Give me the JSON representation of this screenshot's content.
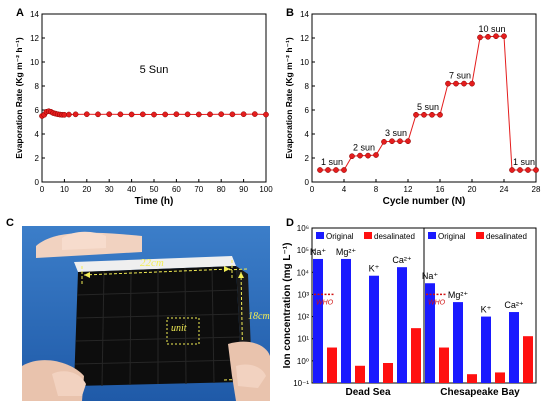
{
  "panels": {
    "a": {
      "letter": "A",
      "annotation": "5 Sun",
      "x_title": "Time (h)",
      "y_title": "Evaporation Rate (Kg m⁻² h⁻¹)"
    },
    "b": {
      "letter": "B",
      "x_title": "Cycle number (N)",
      "y_title": "Evaporation Rate (Kg m⁻² h⁻¹)"
    },
    "c": {
      "letter": "C",
      "width_label": "22cm",
      "height_label": "18cm",
      "unit_label": "unit"
    },
    "d": {
      "letter": "D",
      "y_title": "Ion concentration (mg L⁻¹)",
      "who_label": "WHO"
    }
  },
  "colors": {
    "marker": "#e41d1d",
    "original": "#1a1aff",
    "desalinated": "#ff1010",
    "who": "#d01010",
    "photo_label": "#f3ee55",
    "axis": "#000000"
  },
  "chart_data": [
    {
      "panel": "A",
      "type": "line",
      "marker": "circle",
      "xlim": [
        0,
        100
      ],
      "ylim": [
        0,
        14
      ],
      "xticks": [
        0,
        10,
        20,
        30,
        40,
        50,
        60,
        70,
        80,
        90,
        100
      ],
      "yticks": [
        0,
        2,
        4,
        6,
        8,
        10,
        12,
        14
      ],
      "xlabel": "Time (h)",
      "ylabel": "Evaporation Rate (Kg m⁻² h⁻¹)",
      "annotations": [
        "5 Sun"
      ],
      "series": [
        {
          "x": [
            0,
            1,
            2,
            3,
            4,
            5,
            6,
            7,
            8,
            9,
            10,
            12,
            15,
            20,
            25,
            30,
            35,
            40,
            45,
            50,
            55,
            60,
            65,
            70,
            75,
            80,
            85,
            90,
            95,
            100
          ],
          "y": [
            5.5,
            5.6,
            5.85,
            5.9,
            5.85,
            5.75,
            5.7,
            5.65,
            5.62,
            5.6,
            5.6,
            5.62,
            5.64,
            5.65,
            5.64,
            5.65,
            5.64,
            5.63,
            5.64,
            5.62,
            5.63,
            5.65,
            5.64,
            5.63,
            5.64,
            5.65,
            5.64,
            5.65,
            5.66,
            5.62
          ]
        }
      ]
    },
    {
      "panel": "B",
      "type": "line",
      "marker": "circle",
      "xlim": [
        0,
        28
      ],
      "ylim": [
        0,
        14
      ],
      "xticks": [
        0,
        4,
        8,
        12,
        16,
        20,
        24,
        28
      ],
      "yticks": [
        0,
        2,
        4,
        6,
        8,
        10,
        12,
        14
      ],
      "xlabel": "Cycle number (N)",
      "ylabel": "Evaporation Rate (Kg m⁻² h⁻¹)",
      "series": [
        {
          "x": [
            1,
            2,
            3,
            4,
            5,
            6,
            7,
            8,
            9,
            10,
            11,
            12,
            13,
            14,
            15,
            16,
            17,
            18,
            19,
            20,
            21,
            22,
            23,
            24,
            25,
            26,
            27,
            28
          ],
          "y": [
            1.0,
            1.0,
            1.0,
            1.0,
            2.15,
            2.2,
            2.2,
            2.25,
            3.35,
            3.4,
            3.4,
            3.4,
            5.6,
            5.6,
            5.6,
            5.6,
            8.2,
            8.2,
            8.2,
            8.2,
            12.05,
            12.1,
            12.15,
            12.15,
            1.0,
            1.0,
            1.0,
            1.0
          ]
        }
      ],
      "annotations": [
        {
          "text": "1 sun",
          "x": 2.5,
          "y": 1.0
        },
        {
          "text": "2 sun",
          "x": 6.5,
          "y": 2.2
        },
        {
          "text": "3 sun",
          "x": 10.5,
          "y": 3.4
        },
        {
          "text": "5 sun",
          "x": 14.5,
          "y": 5.6
        },
        {
          "text": "7 sun",
          "x": 18.5,
          "y": 8.2
        },
        {
          "text": "10 sun",
          "x": 22.5,
          "y": 12.1
        },
        {
          "text": "1 sun",
          "x": 26.5,
          "y": 1.0
        }
      ]
    },
    {
      "panel": "D",
      "type": "bar",
      "scale": "log",
      "ylim": [
        0.1,
        1000000
      ],
      "ytick_labels": [
        "10⁻¹",
        "10⁰",
        "10¹",
        "10²",
        "10³",
        "10⁴",
        "10⁵",
        "10⁶"
      ],
      "ylabel": "Ion concentration (mg L⁻¹)",
      "who_line": 1000,
      "legend": [
        "Original",
        "desalinated"
      ],
      "groups": [
        {
          "name": "Dead Sea",
          "categories": [
            "Na⁺",
            "Mg²⁺",
            "K⁺",
            "Ca²⁺"
          ],
          "series": [
            {
              "name": "Original",
              "values": [
                40000,
                40000,
                7000,
                17000
              ]
            },
            {
              "name": "desalinated",
              "values": [
                4,
                0.6,
                0.8,
                30
              ]
            }
          ]
        },
        {
          "name": "Chesapeake Bay",
          "categories": [
            "Na⁺",
            "Mg²⁺",
            "K⁺",
            "Ca²⁺"
          ],
          "series": [
            {
              "name": "Original",
              "values": [
                3200,
                450,
                100,
                160
              ]
            },
            {
              "name": "desalinated",
              "values": [
                4,
                0.25,
                0.3,
                13
              ]
            }
          ]
        }
      ]
    }
  ]
}
